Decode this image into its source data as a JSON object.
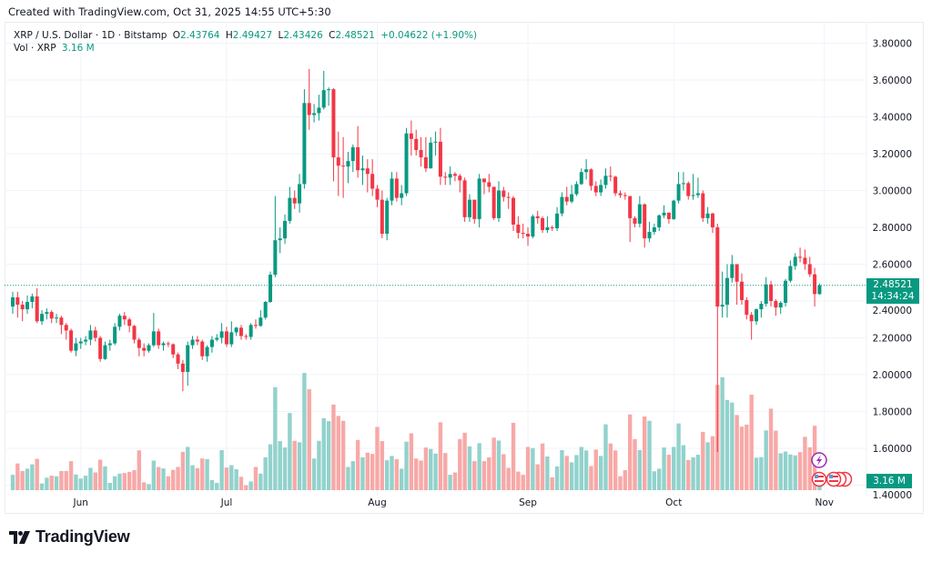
{
  "header": {
    "created": "Created with TradingView.com, Oct 31, 2025 14:55 UTC+5:30"
  },
  "legend": {
    "symbol": "XRP / U.S. Dollar · 1D · Bitstamp",
    "o_label": "O",
    "o": "2.43764",
    "h_label": "H",
    "h": "2.49427",
    "l_label": "L",
    "l": "2.43426",
    "c_label": "C",
    "c": "2.48521",
    "change": "+0.04622 (+1.90%)",
    "vol_label": "Vol · XRP",
    "vol": "3.16 M"
  },
  "price_tag": {
    "price": "2.48521",
    "countdown": "14:34:24"
  },
  "vol_tag": "3.16 M",
  "brand": {
    "name": "TradingView"
  },
  "colors": {
    "up": "#089981",
    "down": "#F23645",
    "up_volume": "#92D2CC",
    "down_volume": "#F7A9A7",
    "grid": "#F0F3FA",
    "last_price_line": "#089981",
    "event_lightning": "#9C27B0",
    "event_flag": "#F23645"
  },
  "icons": {
    "event_1": "lightning-icon",
    "event_2": "us-flag-icon"
  },
  "chart_data": {
    "type": "candlestick",
    "title": "XRP / U.S. Dollar · 1D · Bitstamp",
    "ylim": [
      1.4,
      3.8
    ],
    "grid": true,
    "y_ticks": [
      "3.80000",
      "3.60000",
      "3.40000",
      "3.20000",
      "3.00000",
      "2.80000",
      "2.60000",
      "2.40000",
      "2.20000",
      "2.00000",
      "1.80000",
      "1.60000",
      "1.40000"
    ],
    "x_ticks": [
      {
        "label": "Jun",
        "date": "2025-06-01"
      },
      {
        "label": "Jul",
        "date": "2025-07-01"
      },
      {
        "label": "Aug",
        "date": "2025-08-01"
      },
      {
        "label": "Sep",
        "date": "2025-09-01"
      },
      {
        "label": "Oct",
        "date": "2025-10-01"
      },
      {
        "label": "Nov",
        "date": "2025-11-01"
      }
    ],
    "last_price": 2.48521,
    "volume_unit": "M XRP",
    "candle_fields": [
      "date",
      "open",
      "high",
      "low",
      "close",
      "volume"
    ],
    "candles": [
      [
        "2025-05-18",
        2.37,
        2.45,
        2.33,
        2.42,
        5.3
      ],
      [
        "2025-05-19",
        2.42,
        2.45,
        2.31,
        2.38,
        9.2
      ],
      [
        "2025-05-20",
        2.38,
        2.4,
        2.29,
        2.355,
        6.6
      ],
      [
        "2025-05-21",
        2.355,
        2.43,
        2.33,
        2.395,
        7.4
      ],
      [
        "2025-05-22",
        2.395,
        2.44,
        2.36,
        2.425,
        8.9
      ],
      [
        "2025-05-23",
        2.425,
        2.47,
        2.28,
        2.29,
        10.8
      ],
      [
        "2025-05-24",
        2.29,
        2.35,
        2.27,
        2.33,
        2.3
      ],
      [
        "2025-05-25",
        2.33,
        2.36,
        2.3,
        2.34,
        4.3
      ],
      [
        "2025-05-26",
        2.34,
        2.35,
        2.28,
        2.305,
        5.0
      ],
      [
        "2025-05-27",
        2.305,
        2.33,
        2.28,
        2.31,
        4.8
      ],
      [
        "2025-05-28",
        2.31,
        2.32,
        2.22,
        2.27,
        6.6
      ],
      [
        "2025-05-29",
        2.27,
        2.28,
        2.19,
        2.24,
        6.6
      ],
      [
        "2025-05-30",
        2.24,
        2.25,
        2.12,
        2.13,
        10.0
      ],
      [
        "2025-05-31",
        2.13,
        2.2,
        2.1,
        2.17,
        5.4
      ],
      [
        "2025-06-01",
        2.17,
        2.2,
        2.14,
        2.18,
        4.0
      ],
      [
        "2025-06-02",
        2.18,
        2.21,
        2.16,
        2.19,
        5.0
      ],
      [
        "2025-06-03",
        2.19,
        2.27,
        2.16,
        2.24,
        7.7
      ],
      [
        "2025-06-04",
        2.24,
        2.26,
        2.18,
        2.2,
        6.1
      ],
      [
        "2025-06-05",
        2.2,
        2.21,
        2.07,
        2.085,
        10.5
      ],
      [
        "2025-06-06",
        2.085,
        2.18,
        2.08,
        2.16,
        8.2
      ],
      [
        "2025-06-07",
        2.16,
        2.19,
        2.13,
        2.17,
        2.5
      ],
      [
        "2025-06-08",
        2.17,
        2.28,
        2.16,
        2.26,
        4.8
      ],
      [
        "2025-06-09",
        2.26,
        2.33,
        2.24,
        2.32,
        5.7
      ],
      [
        "2025-06-10",
        2.32,
        2.34,
        2.27,
        2.3,
        5.9
      ],
      [
        "2025-06-11",
        2.3,
        2.31,
        2.23,
        2.265,
        6.3
      ],
      [
        "2025-06-12",
        2.265,
        2.27,
        2.17,
        2.19,
        6.9
      ],
      [
        "2025-06-13",
        2.19,
        2.2,
        2.1,
        2.145,
        13.7
      ],
      [
        "2025-06-14",
        2.145,
        2.17,
        2.1,
        2.13,
        2.7
      ],
      [
        "2025-06-15",
        2.13,
        2.17,
        2.12,
        2.16,
        2.1
      ],
      [
        "2025-06-16",
        2.16,
        2.335,
        2.15,
        2.235,
        10.2
      ],
      [
        "2025-06-17",
        2.235,
        2.25,
        2.14,
        2.16,
        8.0
      ],
      [
        "2025-06-18",
        2.16,
        2.18,
        2.13,
        2.17,
        7.5
      ],
      [
        "2025-06-19",
        2.17,
        2.18,
        2.15,
        2.165,
        4.8
      ],
      [
        "2025-06-20",
        2.165,
        2.17,
        2.09,
        2.11,
        7.0
      ],
      [
        "2025-06-21",
        2.11,
        2.12,
        2.03,
        2.06,
        8.0
      ],
      [
        "2025-06-22",
        2.06,
        2.08,
        1.91,
        2.015,
        13.2
      ],
      [
        "2025-06-23",
        2.015,
        2.18,
        1.94,
        2.16,
        14.9
      ],
      [
        "2025-06-24",
        2.16,
        2.21,
        2.14,
        2.19,
        8.6
      ],
      [
        "2025-06-25",
        2.19,
        2.21,
        2.16,
        2.18,
        7.6
      ],
      [
        "2025-06-26",
        2.18,
        2.19,
        2.08,
        2.1,
        10.9
      ],
      [
        "2025-06-27",
        2.1,
        2.16,
        2.07,
        2.15,
        10.7
      ],
      [
        "2025-06-28",
        2.15,
        2.21,
        2.12,
        2.19,
        3.5
      ],
      [
        "2025-06-29",
        2.19,
        2.22,
        2.18,
        2.2,
        2.5
      ],
      [
        "2025-06-30",
        2.2,
        2.28,
        2.17,
        2.235,
        13.8
      ],
      [
        "2025-07-01",
        2.235,
        2.26,
        2.15,
        2.165,
        7.8
      ],
      [
        "2025-07-02",
        2.165,
        2.29,
        2.15,
        2.23,
        8.6
      ],
      [
        "2025-07-03",
        2.23,
        2.26,
        2.21,
        2.255,
        7.2
      ],
      [
        "2025-07-04",
        2.255,
        2.27,
        2.19,
        2.21,
        4.6
      ],
      [
        "2025-07-05",
        2.21,
        2.22,
        2.19,
        2.205,
        1.7
      ],
      [
        "2025-07-06",
        2.205,
        2.28,
        2.19,
        2.27,
        3.0
      ],
      [
        "2025-07-07",
        2.27,
        2.3,
        2.25,
        2.265,
        8.0
      ],
      [
        "2025-07-08",
        2.265,
        2.35,
        2.26,
        2.31,
        5.7
      ],
      [
        "2025-07-09",
        2.31,
        2.4,
        2.3,
        2.395,
        11.3
      ],
      [
        "2025-07-10",
        2.395,
        2.56,
        2.39,
        2.543,
        15.8
      ],
      [
        "2025-07-11",
        2.543,
        2.97,
        2.53,
        2.73,
        35.5
      ],
      [
        "2025-07-12",
        2.73,
        2.8,
        2.66,
        2.74,
        16.9
      ],
      [
        "2025-07-13",
        2.74,
        2.87,
        2.71,
        2.835,
        14.7
      ],
      [
        "2025-07-14",
        2.835,
        3.02,
        2.82,
        2.96,
        26.6
      ],
      [
        "2025-07-15",
        2.96,
        3.0,
        2.9,
        2.93,
        17.0
      ],
      [
        "2025-07-16",
        2.93,
        3.09,
        2.88,
        3.035,
        16.5
      ],
      [
        "2025-07-17",
        3.035,
        3.55,
        3.01,
        3.475,
        40.4
      ],
      [
        "2025-07-18",
        3.475,
        3.66,
        3.33,
        3.41,
        34.8
      ],
      [
        "2025-07-19",
        3.41,
        3.47,
        3.37,
        3.42,
        10.9
      ],
      [
        "2025-07-20",
        3.42,
        3.52,
        3.38,
        3.45,
        17.0
      ],
      [
        "2025-07-21",
        3.45,
        3.65,
        3.44,
        3.545,
        24.8
      ],
      [
        "2025-07-22",
        3.545,
        3.56,
        3.46,
        3.55,
        23.8
      ],
      [
        "2025-07-23",
        3.55,
        3.555,
        3.05,
        3.18,
        29.5
      ],
      [
        "2025-07-24",
        3.18,
        3.32,
        2.97,
        3.135,
        25.6
      ],
      [
        "2025-07-25",
        3.135,
        3.29,
        2.96,
        3.13,
        23.9
      ],
      [
        "2025-07-26",
        3.13,
        3.21,
        3.04,
        3.16,
        8.0
      ],
      [
        "2025-07-27",
        3.16,
        3.25,
        3.1,
        3.235,
        10.0
      ],
      [
        "2025-07-28",
        3.235,
        3.35,
        3.07,
        3.11,
        17.3
      ],
      [
        "2025-07-29",
        3.11,
        3.19,
        3.03,
        3.12,
        11.3
      ],
      [
        "2025-07-30",
        3.12,
        3.17,
        2.99,
        3.09,
        12.9
      ],
      [
        "2025-07-31",
        3.09,
        3.17,
        2.97,
        3.01,
        12.5
      ],
      [
        "2025-08-01",
        3.01,
        3.03,
        2.91,
        2.95,
        21.8
      ],
      [
        "2025-08-02",
        2.95,
        3.0,
        2.74,
        2.765,
        16.9
      ],
      [
        "2025-08-03",
        2.765,
        2.96,
        2.73,
        2.945,
        10.3
      ],
      [
        "2025-08-04",
        2.945,
        3.1,
        2.92,
        3.065,
        11.8
      ],
      [
        "2025-08-05",
        3.065,
        3.1,
        2.94,
        2.96,
        10.7
      ],
      [
        "2025-08-06",
        2.96,
        3.03,
        2.92,
        2.985,
        7.4
      ],
      [
        "2025-08-07",
        2.985,
        3.34,
        2.97,
        3.31,
        16.7
      ],
      [
        "2025-08-08",
        3.31,
        3.38,
        3.19,
        3.28,
        19.6
      ],
      [
        "2025-08-09",
        3.28,
        3.33,
        3.19,
        3.22,
        10.9
      ],
      [
        "2025-08-10",
        3.22,
        3.29,
        3.13,
        3.18,
        10.2
      ],
      [
        "2025-08-11",
        3.18,
        3.29,
        3.1,
        3.12,
        14.7
      ],
      [
        "2025-08-12",
        3.12,
        3.29,
        3.12,
        3.26,
        14.2
      ],
      [
        "2025-08-13",
        3.26,
        3.32,
        3.19,
        3.265,
        12.6
      ],
      [
        "2025-08-14",
        3.265,
        3.34,
        3.03,
        3.075,
        23.4
      ],
      [
        "2025-08-15",
        3.075,
        3.1,
        3.03,
        3.07,
        12.8
      ],
      [
        "2025-08-16",
        3.07,
        3.13,
        3.03,
        3.09,
        5.3
      ],
      [
        "2025-08-17",
        3.09,
        3.1,
        3.05,
        3.08,
        6.1
      ],
      [
        "2025-08-18",
        3.08,
        3.09,
        2.99,
        3.055,
        17.6
      ],
      [
        "2025-08-19",
        3.055,
        3.07,
        2.83,
        2.855,
        19.8
      ],
      [
        "2025-08-20",
        2.855,
        2.98,
        2.83,
        2.95,
        15.1
      ],
      [
        "2025-08-21",
        2.95,
        2.95,
        2.82,
        2.845,
        10.0
      ],
      [
        "2025-08-22",
        2.845,
        3.09,
        2.8,
        3.065,
        16.2
      ],
      [
        "2025-08-23",
        3.065,
        3.06,
        2.98,
        3.045,
        10.0
      ],
      [
        "2025-08-24",
        3.045,
        3.09,
        2.99,
        3.02,
        11.3
      ],
      [
        "2025-08-25",
        3.02,
        3.02,
        2.84,
        2.85,
        18.1
      ],
      [
        "2025-08-26",
        2.85,
        3.05,
        2.83,
        3.0,
        17.1
      ],
      [
        "2025-08-27",
        3.0,
        3.02,
        2.94,
        2.965,
        12.4
      ],
      [
        "2025-08-28",
        2.965,
        2.99,
        2.9,
        2.96,
        7.7
      ],
      [
        "2025-08-29",
        2.96,
        2.97,
        2.78,
        2.815,
        23.2
      ],
      [
        "2025-08-30",
        2.815,
        2.86,
        2.74,
        2.77,
        6.4
      ],
      [
        "2025-08-31",
        2.77,
        2.82,
        2.74,
        2.765,
        5.3
      ],
      [
        "2025-09-01",
        2.765,
        2.8,
        2.7,
        2.75,
        14.9
      ],
      [
        "2025-09-02",
        2.75,
        2.87,
        2.74,
        2.86,
        14.5
      ],
      [
        "2025-09-03",
        2.86,
        2.89,
        2.82,
        2.85,
        8.9
      ],
      [
        "2025-09-04",
        2.85,
        2.86,
        2.77,
        2.785,
        16.1
      ],
      [
        "2025-09-05",
        2.785,
        2.86,
        2.77,
        2.8,
        11.6
      ],
      [
        "2025-09-06",
        2.8,
        2.81,
        2.78,
        2.795,
        4.4
      ],
      [
        "2025-09-07",
        2.795,
        2.91,
        2.78,
        2.875,
        8.2
      ],
      [
        "2025-09-08",
        2.875,
        2.99,
        2.86,
        2.965,
        13.8
      ],
      [
        "2025-09-09",
        2.965,
        3.02,
        2.92,
        2.94,
        11.8
      ],
      [
        "2025-09-10",
        2.94,
        3.03,
        2.93,
        2.98,
        9.6
      ],
      [
        "2025-09-11",
        2.98,
        3.05,
        2.97,
        3.035,
        12.1
      ],
      [
        "2025-09-12",
        3.035,
        3.12,
        3.03,
        3.1,
        14.9
      ],
      [
        "2025-09-13",
        3.1,
        3.17,
        3.06,
        3.115,
        13.7
      ],
      [
        "2025-09-14",
        3.115,
        3.12,
        3.0,
        3.025,
        8.3
      ],
      [
        "2025-09-15",
        3.025,
        3.05,
        2.97,
        2.99,
        14.0
      ],
      [
        "2025-09-16",
        2.99,
        3.06,
        2.97,
        3.03,
        11.8
      ],
      [
        "2025-09-17",
        3.03,
        3.12,
        3.01,
        3.08,
        22.7
      ],
      [
        "2025-09-18",
        3.08,
        3.13,
        3.05,
        3.075,
        16.1
      ],
      [
        "2025-09-19",
        3.075,
        3.08,
        2.97,
        2.985,
        13.7
      ],
      [
        "2025-09-20",
        2.985,
        3.0,
        2.96,
        2.975,
        4.8
      ],
      [
        "2025-09-21",
        2.975,
        2.99,
        2.95,
        2.97,
        6.9
      ],
      [
        "2025-09-22",
        2.97,
        2.97,
        2.72,
        2.85,
        26.1
      ],
      [
        "2025-09-23",
        2.85,
        2.86,
        2.8,
        2.82,
        17.6
      ],
      [
        "2025-09-24",
        2.82,
        2.97,
        2.8,
        2.925,
        13.8
      ],
      [
        "2025-09-25",
        2.925,
        2.93,
        2.69,
        2.74,
        25.4
      ],
      [
        "2025-09-26",
        2.74,
        2.83,
        2.72,
        2.775,
        23.9
      ],
      [
        "2025-09-27",
        2.775,
        2.82,
        2.76,
        2.8,
        6.5
      ],
      [
        "2025-09-28",
        2.8,
        2.87,
        2.78,
        2.865,
        7.4
      ],
      [
        "2025-09-29",
        2.865,
        2.92,
        2.85,
        2.88,
        14.7
      ],
      [
        "2025-09-30",
        2.88,
        2.88,
        2.82,
        2.845,
        12.2
      ],
      [
        "2025-10-01",
        2.845,
        2.95,
        2.84,
        2.945,
        14.9
      ],
      [
        "2025-10-02",
        2.945,
        3.1,
        2.93,
        3.035,
        23.0
      ],
      [
        "2025-10-03",
        3.035,
        3.1,
        3.0,
        3.04,
        15.5
      ],
      [
        "2025-10-04",
        3.04,
        3.05,
        2.95,
        2.97,
        10.4
      ],
      [
        "2025-10-05",
        2.97,
        3.09,
        2.95,
        2.975,
        11.3
      ],
      [
        "2025-10-06",
        2.975,
        3.07,
        2.96,
        2.985,
        12.2
      ],
      [
        "2025-10-07",
        2.985,
        3.0,
        2.83,
        2.85,
        20.1
      ],
      [
        "2025-10-08",
        2.85,
        2.91,
        2.82,
        2.875,
        16.5
      ],
      [
        "2025-10-09",
        2.875,
        2.88,
        2.77,
        2.8,
        18.6
      ],
      [
        "2025-10-10",
        2.8,
        2.82,
        1.58,
        2.37,
        36.3
      ],
      [
        "2025-10-11",
        2.37,
        2.56,
        2.31,
        2.38,
        38.9
      ],
      [
        "2025-10-12",
        2.38,
        2.6,
        2.31,
        2.525,
        31.1
      ],
      [
        "2025-10-13",
        2.525,
        2.65,
        2.5,
        2.6,
        30.2
      ],
      [
        "2025-10-14",
        2.6,
        2.6,
        2.38,
        2.505,
        25.9
      ],
      [
        "2025-10-15",
        2.505,
        2.55,
        2.38,
        2.405,
        21.9
      ],
      [
        "2025-10-16",
        2.405,
        2.42,
        2.3,
        2.325,
        22.6
      ],
      [
        "2025-10-17",
        2.325,
        2.34,
        2.19,
        2.29,
        32.9
      ],
      [
        "2025-10-18",
        2.29,
        2.36,
        2.27,
        2.355,
        11.2
      ],
      [
        "2025-10-19",
        2.355,
        2.4,
        2.31,
        2.385,
        11.4
      ],
      [
        "2025-10-20",
        2.385,
        2.53,
        2.37,
        2.49,
        20.6
      ],
      [
        "2025-10-21",
        2.49,
        2.51,
        2.37,
        2.4,
        28.1
      ],
      [
        "2025-10-22",
        2.4,
        2.41,
        2.32,
        2.365,
        20.5
      ],
      [
        "2025-10-23",
        2.365,
        2.4,
        2.33,
        2.39,
        12.7
      ],
      [
        "2025-10-24",
        2.39,
        2.52,
        2.37,
        2.51,
        13.3
      ],
      [
        "2025-10-25",
        2.51,
        2.62,
        2.5,
        2.59,
        12.3
      ],
      [
        "2025-10-26",
        2.59,
        2.66,
        2.57,
        2.64,
        12.0
      ],
      [
        "2025-10-27",
        2.64,
        2.69,
        2.61,
        2.635,
        13.1
      ],
      [
        "2025-10-28",
        2.635,
        2.68,
        2.57,
        2.6,
        18.4
      ],
      [
        "2025-10-29",
        2.6,
        2.64,
        2.53,
        2.545,
        14.8
      ],
      [
        "2025-10-30",
        2.545,
        2.58,
        2.37,
        2.43764,
        22.2
      ],
      [
        "2025-10-31",
        2.43764,
        2.49427,
        2.43426,
        2.48521,
        3.16
      ]
    ]
  }
}
